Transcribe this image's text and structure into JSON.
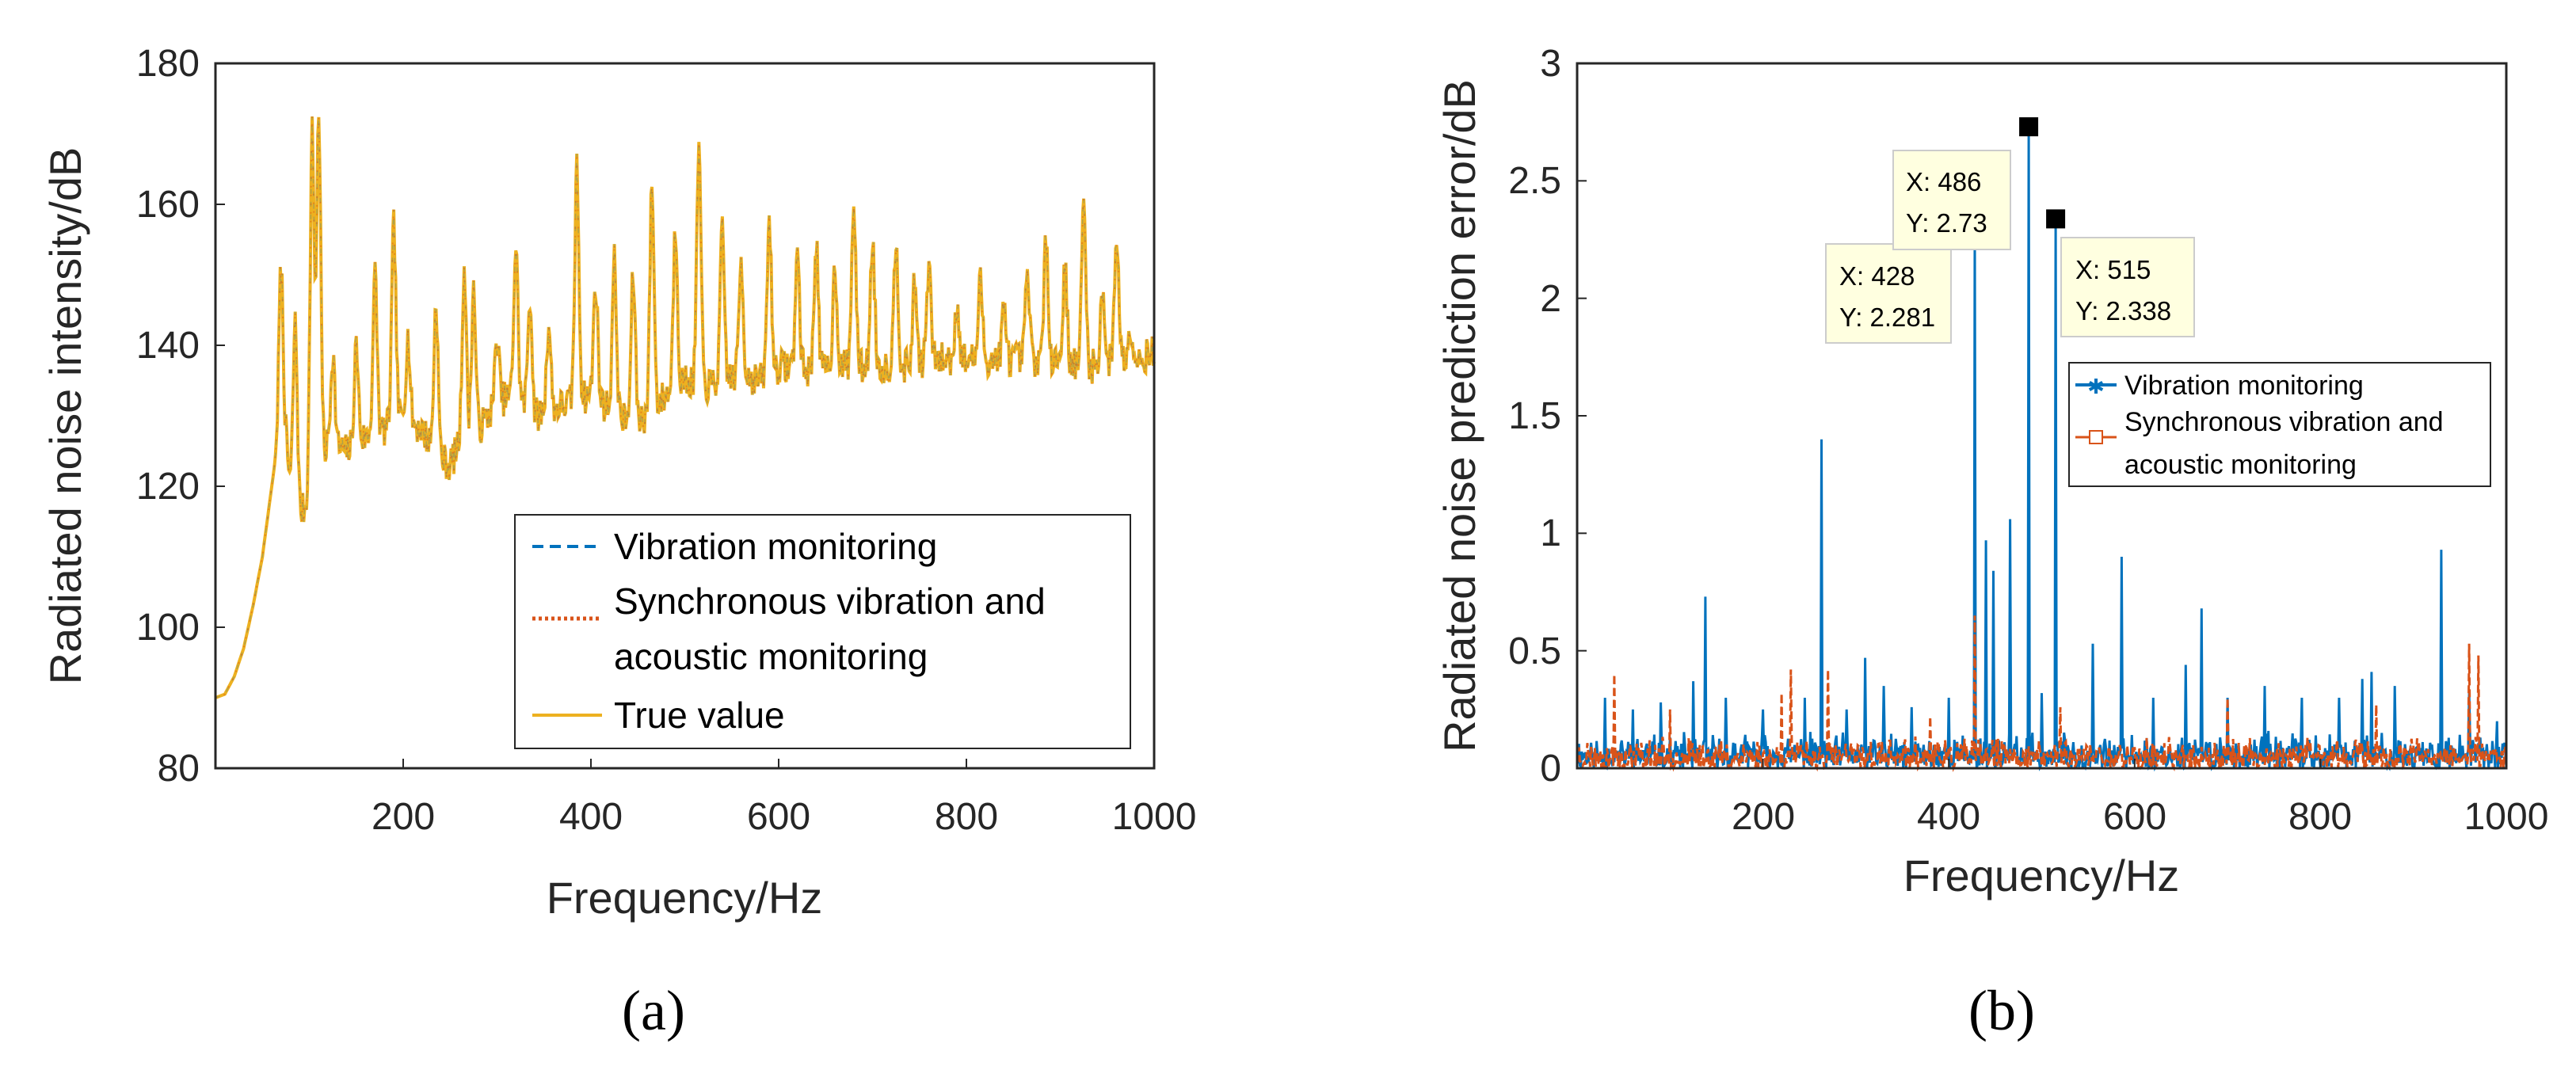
{
  "chart_data": [
    {
      "type": "line",
      "panel_label": "(a)",
      "xlabel": "Frequency/Hz",
      "ylabel": "Radiated noise intensity/dB",
      "xlim": [
        0,
        1000
      ],
      "ylim": [
        80,
        180
      ],
      "xticks": [
        "200",
        "400",
        "600",
        "800",
        "1000"
      ],
      "yticks": [
        "80",
        "100",
        "120",
        "140",
        "160",
        "180"
      ],
      "legend_position": "bottom-right",
      "series": [
        {
          "name": "Vibration monitoring",
          "color": "#0072BD",
          "style": "dashed"
        },
        {
          "name": "Synchronous vibration and acoustic monitoring",
          "color": "#D95319",
          "style": "dotted"
        },
        {
          "name": "True value",
          "color": "#EDB120",
          "style": "solid"
        }
      ],
      "legend_lines": [
        "Vibration monitoring",
        "Synchronous vibration and",
        "acoustic monitoring",
        "True value"
      ],
      "baseline_points": [
        [
          0,
          90
        ],
        [
          10,
          90.5
        ],
        [
          20,
          93
        ],
        [
          30,
          97
        ],
        [
          40,
          103
        ],
        [
          50,
          110
        ],
        [
          60,
          120
        ],
        [
          68,
          128
        ],
        [
          75,
          126
        ],
        [
          80,
          120
        ],
        [
          90,
          116
        ],
        [
          100,
          118
        ],
        [
          120,
          126
        ],
        [
          140,
          125
        ],
        [
          160,
          127
        ],
        [
          180,
          128
        ],
        [
          200,
          130
        ],
        [
          220,
          128
        ],
        [
          240,
          124
        ],
        [
          250,
          123
        ],
        [
          260,
          126
        ],
        [
          280,
          128
        ],
        [
          300,
          132
        ],
        [
          320,
          133
        ],
        [
          340,
          130
        ],
        [
          360,
          131
        ],
        [
          380,
          132
        ],
        [
          400,
          133
        ],
        [
          420,
          131
        ],
        [
          440,
          129
        ],
        [
          460,
          130
        ],
        [
          480,
          133
        ],
        [
          500,
          135
        ],
        [
          520,
          134
        ],
        [
          540,
          135
        ],
        [
          560,
          136
        ],
        [
          580,
          135
        ],
        [
          600,
          137
        ],
        [
          620,
          137
        ],
        [
          640,
          136
        ],
        [
          660,
          137
        ],
        [
          680,
          137
        ],
        [
          700,
          137
        ],
        [
          720,
          137
        ],
        [
          740,
          137
        ],
        [
          760,
          138
        ],
        [
          780,
          138
        ],
        [
          800,
          138
        ],
        [
          820,
          138
        ],
        [
          840,
          138
        ],
        [
          860,
          138
        ],
        [
          880,
          138
        ],
        [
          900,
          138
        ],
        [
          920,
          137
        ],
        [
          940,
          137
        ],
        [
          960,
          138
        ],
        [
          980,
          138
        ],
        [
          1000,
          139
        ]
      ],
      "peaks": [
        [
          70,
          151
        ],
        [
          85,
          143
        ],
        [
          103,
          170
        ],
        [
          110,
          173
        ],
        [
          125,
          139
        ],
        [
          150,
          140
        ],
        [
          170,
          150
        ],
        [
          190,
          157
        ],
        [
          205,
          141
        ],
        [
          235,
          146
        ],
        [
          265,
          151
        ],
        [
          275,
          148
        ],
        [
          300,
          141
        ],
        [
          320,
          154
        ],
        [
          335,
          147
        ],
        [
          355,
          143
        ],
        [
          385,
          165
        ],
        [
          405,
          149
        ],
        [
          425,
          152
        ],
        [
          445,
          150
        ],
        [
          465,
          163
        ],
        [
          490,
          157
        ],
        [
          515,
          168
        ],
        [
          540,
          156
        ],
        [
          560,
          152
        ],
        [
          590,
          158
        ],
        [
          620,
          153
        ],
        [
          640,
          155
        ],
        [
          660,
          151
        ],
        [
          680,
          160
        ],
        [
          700,
          155
        ],
        [
          725,
          155
        ],
        [
          745,
          149
        ],
        [
          760,
          151
        ],
        [
          790,
          146
        ],
        [
          815,
          149
        ],
        [
          840,
          145
        ],
        [
          865,
          150
        ],
        [
          885,
          155
        ],
        [
          905,
          151
        ],
        [
          925,
          160
        ],
        [
          945,
          148
        ],
        [
          960,
          156
        ],
        [
          975,
          143
        ]
      ]
    },
    {
      "type": "line",
      "panel_label": "(b)",
      "xlabel": "Frequency/Hz",
      "ylabel": "Radiated noise prediction error/dB",
      "xlim": [
        0,
        1000
      ],
      "ylim": [
        0,
        3
      ],
      "xticks": [
        "200",
        "400",
        "600",
        "800",
        "1000"
      ],
      "yticks": [
        "0",
        "0.5",
        "1",
        "1.5",
        "2",
        "2.5",
        "3"
      ],
      "legend_position": "right",
      "series": [
        {
          "name": "Vibration monitoring",
          "color": "#0072BD",
          "marker": "star"
        },
        {
          "name": "Synchronous vibration and acoustic monitoring",
          "color": "#D95319",
          "marker": "square"
        }
      ],
      "legend_lines": [
        "Vibration monitoring",
        "Synchronous vibration and",
        "acoustic monitoring"
      ],
      "vibration_peaks": [
        [
          30,
          0.3
        ],
        [
          60,
          0.25
        ],
        [
          90,
          0.28
        ],
        [
          125,
          0.37
        ],
        [
          138,
          0.73
        ],
        [
          160,
          0.3
        ],
        [
          200,
          0.25
        ],
        [
          245,
          0.3
        ],
        [
          263,
          1.4
        ],
        [
          290,
          0.25
        ],
        [
          310,
          0.47
        ],
        [
          330,
          0.35
        ],
        [
          360,
          0.26
        ],
        [
          400,
          0.3
        ],
        [
          428,
          2.281
        ],
        [
          440,
          0.97
        ],
        [
          448,
          0.84
        ],
        [
          466,
          1.06
        ],
        [
          486,
          2.73
        ],
        [
          500,
          0.32
        ],
        [
          515,
          2.338
        ],
        [
          555,
          0.53
        ],
        [
          586,
          0.9
        ],
        [
          620,
          0.3
        ],
        [
          655,
          0.44
        ],
        [
          672,
          0.68
        ],
        [
          700,
          0.3
        ],
        [
          740,
          0.35
        ],
        [
          780,
          0.3
        ],
        [
          820,
          0.3
        ],
        [
          845,
          0.38
        ],
        [
          855,
          0.41
        ],
        [
          880,
          0.35
        ],
        [
          930,
          0.93
        ],
        [
          960,
          0.32
        ],
        [
          990,
          0.2
        ]
      ],
      "acoustic_peaks": [
        [
          40,
          0.4
        ],
        [
          100,
          0.25
        ],
        [
          220,
          0.32
        ],
        [
          230,
          0.42
        ],
        [
          270,
          0.42
        ],
        [
          380,
          0.22
        ],
        [
          428,
          0.65
        ],
        [
          520,
          0.26
        ],
        [
          700,
          0.3
        ],
        [
          860,
          0.27
        ],
        [
          960,
          0.53
        ],
        [
          970,
          0.48
        ]
      ],
      "datatips": [
        {
          "x_label": "X: 428",
          "y_label": "Y: 2.281",
          "x": 428,
          "y": 2.281
        },
        {
          "x_label": "X: 486",
          "y_label": "Y: 2.73",
          "x": 486,
          "y": 2.73
        },
        {
          "x_label": "X: 515",
          "y_label": "Y: 2.338",
          "x": 515,
          "y": 2.338
        }
      ]
    }
  ]
}
